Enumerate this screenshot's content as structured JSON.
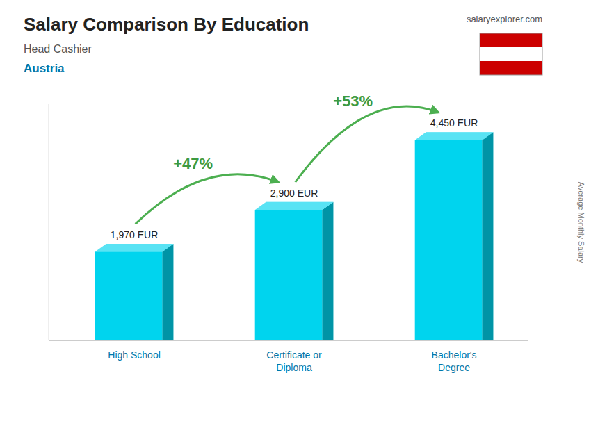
{
  "chart_data": {
    "type": "bar",
    "title": "Salary Comparison By Education",
    "subtitle": "Head Cashier",
    "annotations": [
      {
        "text": "Austria"
      },
      {
        "text": "salaryexplorer.com"
      },
      {
        "text": "+47%",
        "value": 47
      },
      {
        "text": "+53%",
        "value": 53
      }
    ],
    "ylabel": "Average Monthly Salary",
    "categories": [
      "High School",
      "Certificate or\nDiploma",
      "Bachelor's\nDegree"
    ],
    "values": [
      1970,
      2900,
      4450
    ],
    "value_labels": [
      "1,970 EUR",
      "2,900 EUR",
      "4,450 EUR"
    ],
    "data_labels": true,
    "color": "#00d4ee",
    "ylim": [
      0,
      5251
    ],
    "tick_labels": false,
    "grid": false
  }
}
